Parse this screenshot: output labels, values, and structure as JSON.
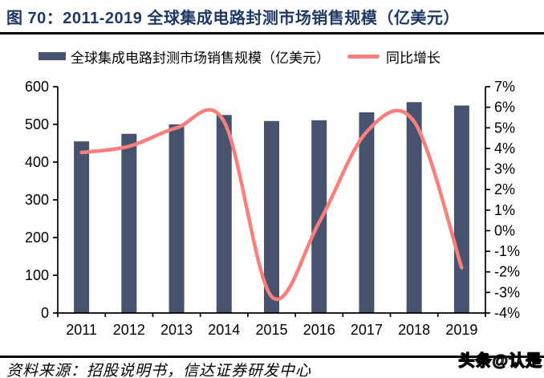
{
  "header": {
    "title": "图 70：2011-2019 全球集成电路封测市场销售规模（亿美元）"
  },
  "colors": {
    "title": "#1F3864",
    "bar": "#47526E",
    "line": "#FA7E7C",
    "axis": "#000000"
  },
  "legend": {
    "items": [
      {
        "type": "bar",
        "label": "全球集成电路封测市场销售规模（亿美元）",
        "color": "#47526E"
      },
      {
        "type": "line",
        "label": "同比增长",
        "color": "#FA7E7C"
      }
    ]
  },
  "chart_data": {
    "type": "bar",
    "subtype": "bar-line-combo",
    "title": "2011-2019 全球集成电路封测市场销售规模（亿美元）",
    "categories": [
      "2011",
      "2012",
      "2013",
      "2014",
      "2015",
      "2016",
      "2017",
      "2018",
      "2019"
    ],
    "series": [
      {
        "name": "全球集成电路封测市场销售规模（亿美元）",
        "type": "bar",
        "axis": "left",
        "values": [
          455,
          475,
          500,
          525,
          509,
          511,
          532,
          559,
          550
        ]
      },
      {
        "name": "同比增长",
        "type": "line",
        "axis": "right",
        "unit": "%",
        "values": [
          3.8,
          4.1,
          5.0,
          5.3,
          -3.2,
          0.4,
          4.8,
          5.3,
          -1.8
        ]
      }
    ],
    "left_axis": {
      "min": 0,
      "max": 600,
      "step": 100,
      "tick_labels": [
        "600",
        "500",
        "400",
        "300",
        "200",
        "100",
        "0"
      ]
    },
    "right_axis": {
      "min": -4,
      "max": 7,
      "step": 1,
      "tick_labels": [
        "7%",
        "6%",
        "5%",
        "4%",
        "3%",
        "2%",
        "1%",
        "0%",
        "-1%",
        "-2%",
        "-3%",
        "-4%"
      ]
    },
    "grid": false,
    "legend_position": "top"
  },
  "footer": {
    "source": "资料来源：招股说明书，信达证券研发中心",
    "watermark": "头条@认是"
  }
}
